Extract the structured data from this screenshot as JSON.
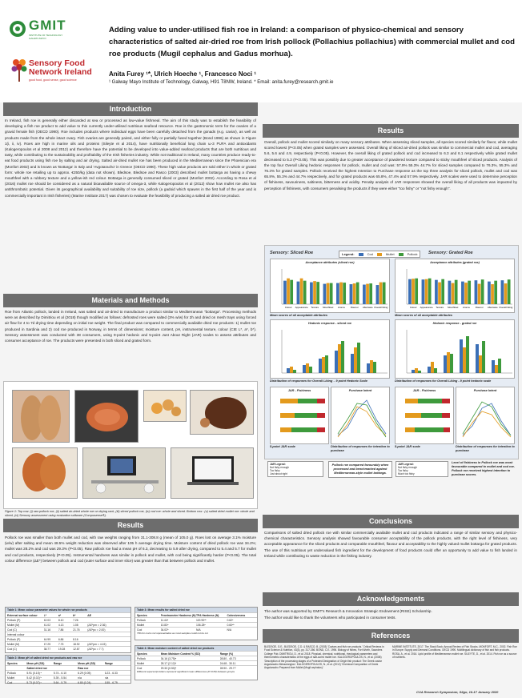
{
  "header": {
    "logo1_text": "GMIT",
    "logo1_sub": "INSTITUTE OF TECHNOLOGY\nGALWAY-MAYO",
    "logo2_text": "Sensory Food Network Ireland",
    "logo2_sub": "good food, good sense, good science",
    "title": "Adding value to under-utilised fish roe in Ireland: a comparison of physico-chemical and sensory characteristics of salted air-dried roe from Irish pollock (Pollachius pollachius) with commercial mullet and cod roe products (Mugil cephalus and Gadus morhua).",
    "authors": "Anita Furey ¹*,    Ulrich Hoeche ¹,    Francesco Noci ¹",
    "affiliation": "¹ Galway Mayo Institute of Technology,  Galway,  H91 T8NW,  Ireland. * Email: anita.furey@research.gmit.ie"
  },
  "intro": {
    "heading": "Introduction",
    "text": "In Ireland, fish roe is generally either discarded at sea or processed as low-value fishmeal. The aim of this study was to establish the feasibility of developing a fish roe product to add value to this currently under-utilised nutritious seafood resource. Roe is the gastronomic term for the ovaries of a gravid female fish (OECD 1990). Roe includes products where individual eggs have been carefully detached from the gonads (e.g. caviar), as well as products made from the whole intact ovary. Fish ovaries are generally paired, and either fully or partially fused together (Bond 1996) as shown in Figure 1(i, ii, iv). Roes are high in marine oils and proteins (Sileyte et al 2014), have nutritionally beneficial long chain ω-3 PUFA and antioxidants (Kalogeropoulos et al 2008 and 2012) and therefore have the potential to be developed into value-added seafood products that are both nutritious and tasty, while contributing to the sustainability and profitability of the Irish fisheries industry. While not traditional in Ireland, many countries produce ready-to-eat food products using fish roe by salting and air drying. Salted air-dried mullet roe has been produced in the Mediterranean since the Phoenician era (Monfort 2002) and is known as 'Bottarga' in Italy and 'Avgotaracho' in Greece (OECD 1990). These high value products are sold either in whole or grated form: whole roe retailing up to approx. €250/kg (data not shown). Bledsoe, Bledsoe and Rasco (2003) described mullet bottarga as having a chewy mouthfeel with a rubbery texture and a yellow-ish red colour. Bottarga is generally consumed sliced or grated (Monfort 2002). According to Rosa et al (2016) mullet roe should be considered as a natural bioavailable source of omega-3, while Kalogeropoulos et al (2012) show how mullet roe also has antithrombotic potential. Given its geographical availability and suitability of roe size, pollock (a gadoid which spawns in the first half of the year and is commercially important in Irish fisheries) (Marine Institute 2017) was chosen to evaluate the feasibility of producing a salted air dried roe product."
  },
  "methods": {
    "heading": "Materials and Methods",
    "text": "Roe from Atlantic pollock, landed in Ireland, was salted and air-dried to manufacture a product similar to Mediterranean \"bottarga\". Processing methods were as described by Dimitriou et al (2018) though modified as follows: defrosted roes were salted (3% w/w) for 2h and dried on mesh trays using forced air flow for 4 to 7d drying time depending on initial roe weight. The final product was compared to commercially available dried roe products: 1) mullet roe produced in Sardinia and 2) cod roe produced in Norway, in terms of: dimensions; moisture content, pH, instrumental texture, colour (CIE L*, a*, b*). Sensory assessment was conducted with 38 consumers, using 9-point hedonic and 5-point Just About Right (JAR) scales to assess attributes and consumer acceptance of roe.  The products were presented in both sliced and grated form.",
    "caption": "Figure 1: Top row: (i) raw pollock roe, (ii) salted air-dried whole roe on drying rack, (iii) sliced pollock roe, (iv) cod roe: whole and sliced. Bottom row : (v) salted dried mullet roe: whole and sliced, (vi) Sensory assessment using evaluation software (Compusense®)."
  },
  "results_left": {
    "heading": "Results",
    "text": "Pollock roe was smaller than both mullet and cod, with raw weights ranging from 31.1-308.8 g (mean of 105.0 g). Roes lost on average 3.1% moisture (w/w) after salting and mean 48.5% weight reduction was observed after 105 h average drying time. Moisture content of dried pollock roe was 34.2%; mullet was 28.2% and cod was 29.3% (P<0.05). Raw pollock roe had a mean pH of 6.3, decreasing to 5.9 after drying, compared to 5.4 and 5.7 for mullet and cod products, respectively (P<0.05). Instrumental hardness was similar in pollock and mullet, with cod being significantly harder (P<0.05). The total colour difference (ΔE*) between pollock and cod (outer surface and inner slice) was greater than that between pollock and mullet."
  },
  "table1": {
    "title": "Table 1: Mean colour parameter values for whole roe products",
    "headers": [
      "External surface colour",
      "L*",
      "a*",
      "b*",
      "ΔE"
    ],
    "rows": [
      [
        "Pollock (P)",
        "42.03",
        "8.10",
        "7.26",
        ""
      ],
      [
        "Mullet (M)",
        "41.02",
        "4.13",
        "1.08",
        "(ΔE*pm = 2.36)"
      ],
      [
        "Cod (C)",
        "31.16",
        "7.86",
        "21.76",
        "(ΔE*pc = 2.00)"
      ],
      [
        "Internal colour",
        "",
        "",
        "",
        ""
      ],
      [
        "Pollock (P)",
        "44.99",
        "6.86",
        "8.16",
        ""
      ],
      [
        "Mullet (M)",
        "47.25",
        "7.75",
        "18.92",
        "(ΔE*pm = 4.15)"
      ],
      [
        "Cod (C)",
        "38.77",
        "19.28",
        "12.87",
        "(ΔE*pc = 7.7)"
      ]
    ]
  },
  "table2": {
    "title": "Table 2: Mean pH of salted dried roe products and raw roe",
    "headers": [
      "Species",
      "Mean pH (SD)",
      "Range",
      "Mean pH (SD)",
      "Range"
    ],
    "subhead": [
      "",
      "Salted dried roe",
      "",
      "Raw roe",
      ""
    ],
    "rows": [
      [
        "Pollock",
        "5.91 (0.15) ᵃ",
        "5.74 - 6.10",
        "6.29 (0.05)",
        "6.23 - 6.33"
      ],
      [
        "Mullet",
        "5.42 (0.02) ᵇ",
        "5.39 - 5.54",
        "n/a",
        "n/a"
      ],
      [
        "Cod",
        "5.73 (0.07) ᶜ",
        "5.64 - 5.79",
        "6.80 (0.24)",
        "6.55 - 6.79"
      ]
    ]
  },
  "table3": {
    "title": "Table 3: Mean results for salted dried roe",
    "headers": [
      "Species",
      "Penetrometer Hardness (N)",
      "TPA Hardness (N)",
      "Cohesiveness"
    ],
    "rows": [
      [
        "Pollock",
        "11.44ᵃ",
        "119.90ᵃᵇ",
        "0.62ᵃ"
      ],
      [
        "Mullet",
        "10.83ᵃ",
        "106.28ᵃ",
        "0.60ᵃᵇ"
      ],
      [
        "Cod",
        "34.02ᵇ",
        "N/A",
        "N/A"
      ]
    ],
    "note": "TPA for cod is not representative as most samples could not be cut"
  },
  "table4": {
    "title": "Table 4: Mean moisture content of salted dried roe products",
    "headers": [
      "Species",
      "Mean Moisture Content % (SD)",
      "Range (%)"
    ],
    "rows": [
      [
        "Pollock",
        "34.16 (3.75)ᵃ",
        "28.80 - 40.73"
      ],
      [
        "Mullet",
        "28.17 (2.12)ᵇ",
        "24.68 - 30.11"
      ],
      [
        "Cod",
        "29.33 (0.50)ᵇ",
        "28.90 - 29.77"
      ]
    ],
    "note": "Different superscript letters represent significant mean differences (P<0.05) between groups"
  },
  "results_right": {
    "heading": "Results",
    "text": "Overall, pollock and mullet scored similarly on many sensory attributes. When assessing sliced samples, all species scored similarly for flavor, while mullet scored lowest (P<0.05) when grated samples were assessed. Overall liking of sliced air-dried pollock was similar to commercial mullet and cod, averaging 5.6, 5.6 and 4.9, respectively (P<0.05). However, the overall liking of grated pollock and cod increased to 6.3 and 6.1 respectively while grated mullet decreased to 5.3 (P<0.05). This was possibly due to greater acceptance of powdered texture compared to sticky mouthfeel of sliced products. Analysis of the top four Overall Liking hedonic responses for pollock, mullet and cod was: 57.9% 55.3% 44.7% for sliced samples compared to 76.3%, 55.3% and 76.3% for grated samples. Pollock received the highest Intention to Purchase response as the top three analysis for sliced pollock, mullet and cod was 65.8%, 55.3% and 44.7% respectively, and for grated products was 65.8%, 47.4% and 57.9% respectively. JAR scales were used to determine perception of fishiness, savouriness, saltiness, bitterness and acidity. Penalty analysis of JAR responses showed the overall liking of all products was impacted by perception of fishiness, with consumers penalising the products if they were either \"too fishy\" or \"not fishy enough\"."
  },
  "sensory": {
    "sliced_label": "Sensory: Sliced Roe",
    "grated_label": "Sensory: Grated Roe",
    "legend_title": "Legend:",
    "legend": [
      "Cod",
      "Mullet",
      "Pollock"
    ],
    "accept_sliced_title": "Acceptance attributes (sliced roe)",
    "accept_grated_title": "Acceptance attributes (grated roe)",
    "accept_caption": "Mean scores of all acceptable attributes",
    "hedonic_sliced_title": "Hedonic response - sliced roe",
    "hedonic_grated_title": "Hedonic response - grated roe",
    "dist_sliced_caption": "Distribution of responses for Overall Liking – 9 point Hedonic Scale",
    "dist_grated_caption": "Distribution of responses for Overall Liking - 9 point hedonic scale",
    "jar_sliced_title": "JAR - Fishiness",
    "jar_grated_title": "JAR - Fishiness",
    "purchase_title": "Purchase Intent",
    "jar_left_caption": "5-point JAR scale",
    "jar_left_caption2": "Distribution of responses for intention to purchase",
    "jar_right_caption": "5-point JAR scale",
    "jar_right_caption2": "Distribution of responses for intention to purchase",
    "jar_legend_title": "JAR Legend:",
    "jar_legend": [
      "Not fishy enough",
      "Too fishy",
      "Just about right",
      "Much too fishy"
    ],
    "note_left": "Pollock roe compared favourably when processed and benchmarked against Mediterranean-style mullet bottarga.",
    "note_right": "Level of fishiness in Pollock roe was most favourable compared to mullet and cod roe. Pollock roe received highest intention to purchase scores.",
    "categories": [
      "Colour",
      "Appearance",
      "Texture",
      "Mouthfeel",
      "Aroma",
      "Flavour",
      "Aftertaste",
      "Overall liking"
    ],
    "chart_data": [
      {
        "type": "bar",
        "title": "Acceptance attributes (sliced roe)",
        "categories": [
          "Colour",
          "Appearance",
          "Texture",
          "Mouthfeel",
          "Aroma",
          "Flavour",
          "Aftertaste",
          "Overall liking"
        ],
        "series": [
          {
            "name": "Cod",
            "values": [
              6.0,
              5.8,
              5.6,
              5.2,
              5.4,
              5.1,
              5.0,
              4.9
            ]
          },
          {
            "name": "Mullet",
            "values": [
              6.6,
              6.6,
              5.9,
              5.4,
              5.6,
              5.3,
              5.2,
              5.6
            ]
          },
          {
            "name": "Pollock",
            "values": [
              6.2,
              6.0,
              5.7,
              5.4,
              5.5,
              5.6,
              5.3,
              5.6
            ]
          }
        ],
        "ylim": [
          0,
          9
        ]
      },
      {
        "type": "bar",
        "title": "Acceptance attributes (grated roe)",
        "categories": [
          "Colour",
          "Appearance",
          "Texture",
          "Mouthfeel",
          "Aroma",
          "Flavour",
          "Aftertaste",
          "Overall liking"
        ],
        "series": [
          {
            "name": "Cod",
            "values": [
              6.4,
              6.3,
              6.2,
              6.0,
              5.8,
              6.1,
              5.8,
              6.1
            ]
          },
          {
            "name": "Mullet",
            "values": [
              6.5,
              6.4,
              5.6,
              5.4,
              5.5,
              5.2,
              5.1,
              5.3
            ]
          },
          {
            "name": "Pollock",
            "values": [
              6.6,
              6.6,
              6.4,
              6.2,
              6.0,
              6.3,
              6.0,
              6.3
            ]
          }
        ],
        "ylim": [
          0,
          9
        ]
      }
    ]
  },
  "conclusions": {
    "heading": "Conclusions",
    "text": "Comparisons of salted dried pollock roe with similar commercially available mullet and cod products indicated a range of similar sensory and physico-chemical characteristics. Sensory analysis showed favourable consumer acceptability of the pollock products, with the right level of fishiness, very acceptable appearance for the sliced products and comparable mouthfeel, flavour and acceptability to the highly valued mullet bottarga for grated products. The use of this nutritious yet undervalued fish ingredient for the development of food products could offer an opportunity to add value to fish landed in Ireland while contributing to waste reduction in the fishing industry."
  },
  "ack": {
    "heading": "Acknowledgements",
    "text1": "The author was supported by GMIT's Research & Innovation Strategic Endowment (RISE) Scholarship.",
    "text2": "The author would like to thank the volunteers who participated in consumer tests."
  },
  "refs": {
    "heading": "References",
    "left": "BLEDSOE, G.E., BLEDSOE, C.D. & RASCO, B. (2003) 'Caviars and fish roe products.' Critical Reviews in Food Science & Nutrition, 43(3), pp. 317-356. BOND, C.E. 1996. Biology of fishes, Fort Worth, Saunders College Pub. DIMITRIOU, D., et al. 2018. Physical, chemical, nutritional, rheological parameters and thermometric characteristics of the eggs of salt-cured mullet roe. KALOGEROPOULOS, N., et al. (2008) 'Description of the processing stages of a Protected Designation of Origin fish product: The Greek caviar Avgotaracho Messolongiou'. KALOGEROPOULOS, N., et al. (2012) 'Chemical Composition of Greek Avgotaracho Prepared from Mullet (Mugil cephalus).'",
    "right": "MARINE INSTITUTE, 2017. The Stock Book: Annual Review of Fish Stocks. MONFORT, M.C., 2002. Fish Roe in Europe: Supply and Demand Conditions. OECD 1990. Multilingual dictionary of fish and fish products. ROSA, A., et al. 2016. Lipid profile of Mediterranean mullet roe. SILEYTE, D., et al. 2014. Fish roe as a source of nutrients.",
    "footer": "CUA Research Symposium, Sligo, 16-17 January 2020"
  },
  "colors": {
    "cod": "#3b6fb6",
    "mullet": "#e39a1d",
    "pollock": "#3e9a3c",
    "header_bar": "#6d6d6d",
    "gmit_green": "#2d8b3a",
    "sfni_red": "#c0282d"
  }
}
